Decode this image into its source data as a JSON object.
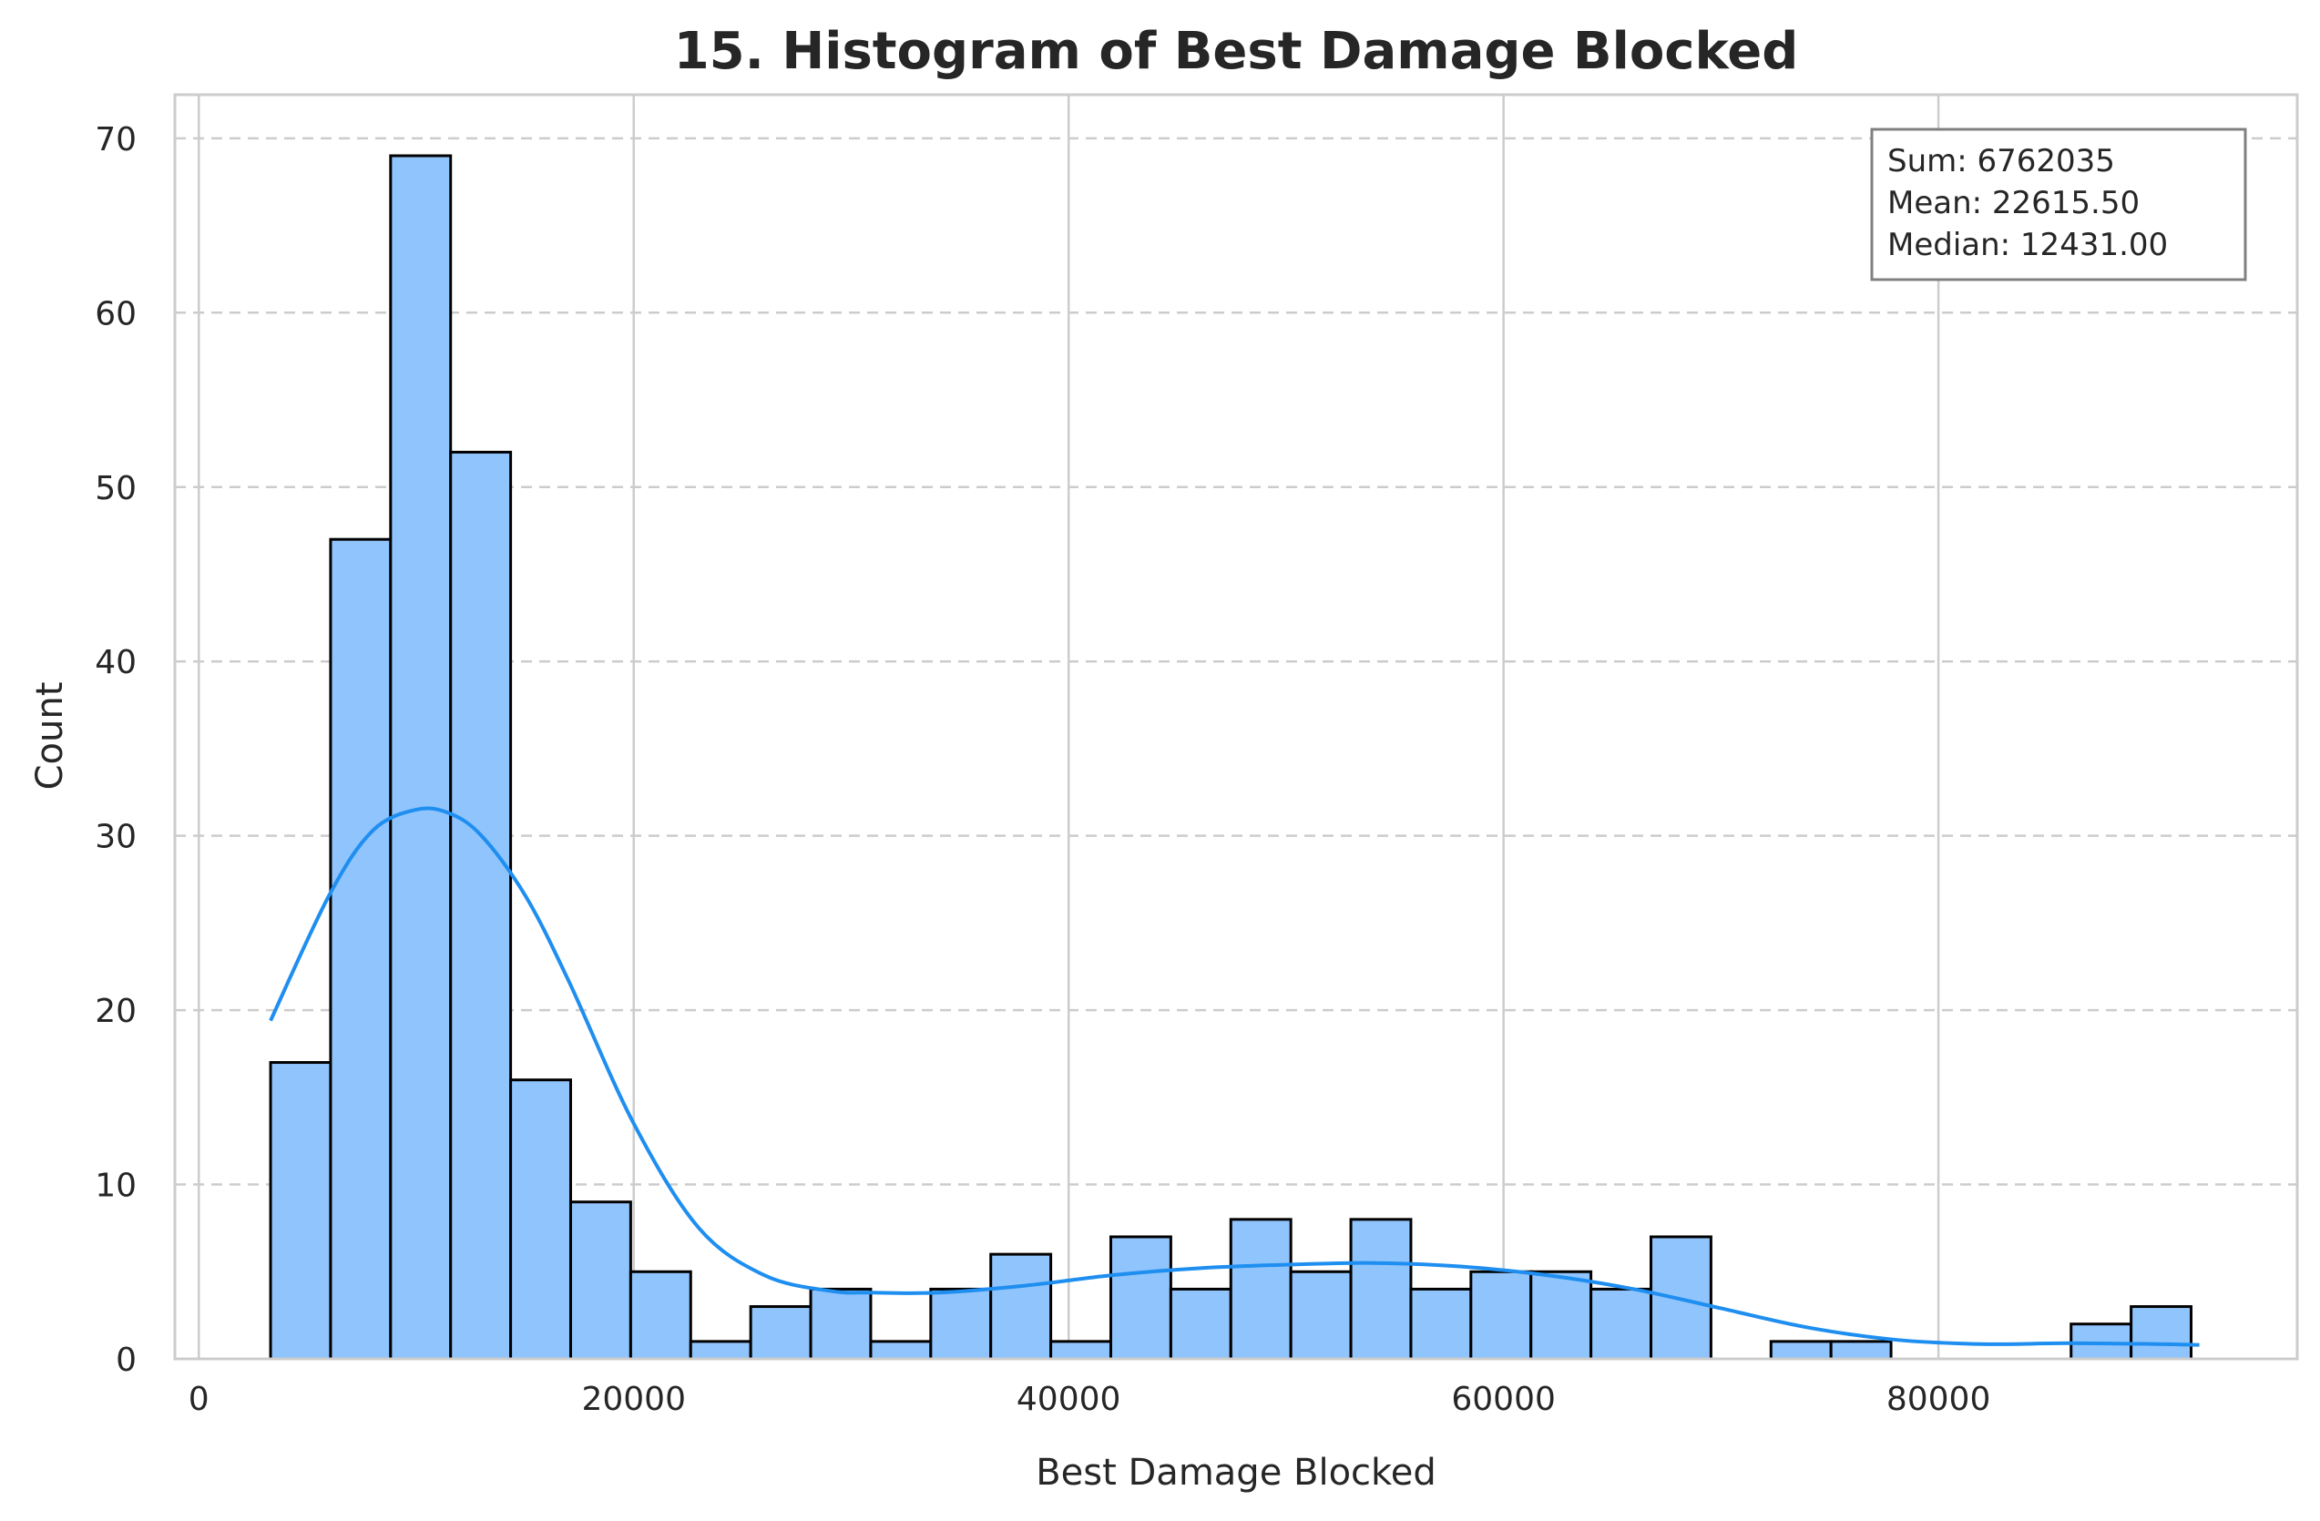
{
  "chart_data": {
    "type": "bar",
    "title": "15. Histogram of Best Damage Blocked",
    "xlabel": "Best Damage Blocked",
    "ylabel": "Count",
    "xlim": [
      -1100,
      96500
    ],
    "ylim": [
      0,
      72.5
    ],
    "xticks": [
      0,
      20000,
      40000,
      60000,
      80000
    ],
    "yticks": [
      0,
      10,
      20,
      30,
      40,
      50,
      60,
      70
    ],
    "grid": true,
    "bin_edges": [
      3300,
      6060,
      8820,
      11580,
      14340,
      17100,
      19860,
      22620,
      25380,
      28140,
      30900,
      33660,
      36420,
      39180,
      41940,
      44700,
      47460,
      50220,
      52980,
      55740,
      58500,
      61260,
      64020,
      66780,
      69540,
      72300,
      75060,
      77820,
      80580,
      83340,
      86100,
      88860,
      91620
    ],
    "counts": [
      17,
      47,
      69,
      52,
      16,
      9,
      5,
      1,
      3,
      4,
      1,
      4,
      6,
      1,
      7,
      4,
      8,
      5,
      8,
      4,
      5,
      5,
      4,
      7,
      0,
      1,
      1,
      0,
      0,
      0,
      2,
      3
    ],
    "kde": {
      "x": [
        3300,
        6000,
        8000,
        10000,
        11500,
        13000,
        15000,
        17000,
        20000,
        23000,
        26000,
        29000,
        31000,
        34000,
        38000,
        42000,
        46000,
        50000,
        54000,
        58000,
        62000,
        66000,
        70000,
        74000,
        78000,
        82000,
        86000,
        90000,
        92000
      ],
      "y": [
        19.4,
        26.6,
        30.3,
        31.5,
        31.3,
        30.0,
        26.6,
        21.7,
        13.5,
        7.5,
        4.8,
        3.9,
        3.8,
        3.8,
        4.2,
        4.8,
        5.2,
        5.4,
        5.5,
        5.3,
        4.8,
        4.0,
        2.9,
        1.8,
        1.1,
        0.85,
        0.9,
        0.85,
        0.8
      ]
    },
    "annotation": {
      "lines": [
        "Sum: 6762035",
        "Mean: 22615.50",
        "Median: 12431.00"
      ],
      "placement": "top-right"
    },
    "colors": {
      "bar_fill": "#90c4fd",
      "bar_edge": "#000000",
      "kde_line": "#1e8ef0",
      "grid": "#cccccc",
      "spine": "#cccccc",
      "text": "#262626"
    }
  }
}
